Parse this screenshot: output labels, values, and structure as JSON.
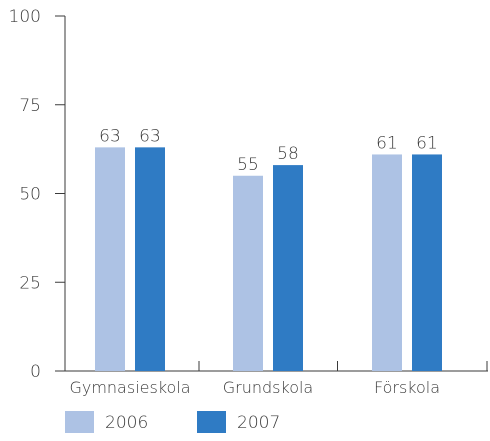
{
  "chart_data": {
    "type": "bar",
    "categories": [
      "Gymnasieskola",
      "Grundskola",
      "Förskola"
    ],
    "series": [
      {
        "name": "2006",
        "values": [
          63,
          55,
          61
        ],
        "color": "#adc2e4"
      },
      {
        "name": "2007",
        "values": [
          63,
          58,
          61
        ],
        "color": "#2f7bc4"
      }
    ],
    "ylim": [
      0,
      100
    ],
    "yticks": [
      0,
      25,
      50,
      75,
      100
    ],
    "grid": false,
    "legend_position": "bottom-left",
    "axis_color": "#3a3a3a"
  }
}
